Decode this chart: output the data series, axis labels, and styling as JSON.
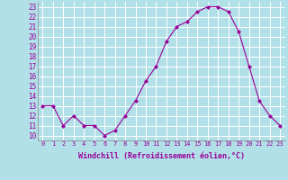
{
  "x": [
    0,
    1,
    2,
    3,
    4,
    5,
    6,
    7,
    8,
    9,
    10,
    11,
    12,
    13,
    14,
    15,
    16,
    17,
    18,
    19,
    20,
    21,
    22,
    23
  ],
  "y": [
    13,
    13,
    11,
    12,
    11,
    11,
    10,
    10.5,
    12,
    13.5,
    15.5,
    17,
    19.5,
    21,
    21.5,
    22.5,
    23,
    23,
    22.5,
    20.5,
    17,
    13.5,
    12,
    11
  ],
  "line_color": "#990099",
  "marker": "D",
  "marker_size": 2,
  "bg_color": "#b2e0e8",
  "grid_color": "#ffffff",
  "xlabel": "Windchill (Refroidissement éolien,°C)",
  "label_color": "#990099",
  "ylabel_values": [
    10,
    11,
    12,
    13,
    14,
    15,
    16,
    17,
    18,
    19,
    20,
    21,
    22,
    23
  ],
  "xlim": [
    -0.5,
    23.5
  ],
  "ylim": [
    9.5,
    23.5
  ],
  "xtick_labels": [
    "0",
    "1",
    "2",
    "3",
    "4",
    "5",
    "6",
    "7",
    "8",
    "9",
    "10",
    "11",
    "12",
    "13",
    "14",
    "15",
    "16",
    "17",
    "18",
    "19",
    "20",
    "21",
    "22",
    "23"
  ]
}
